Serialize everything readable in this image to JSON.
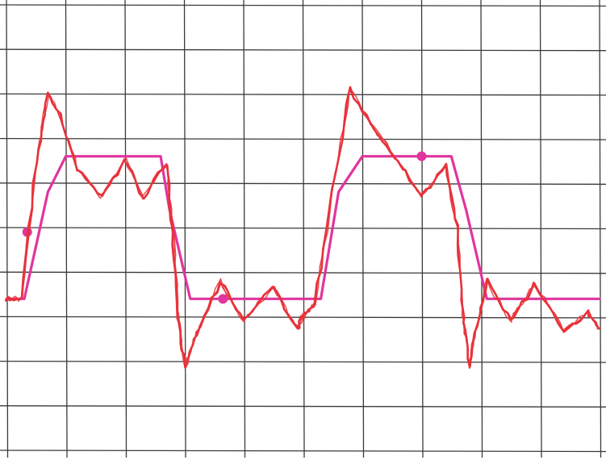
{
  "colors": {
    "background": "#ffffff",
    "grid": "#3a3a3a",
    "response_trace": "#e8323a",
    "reference_trace": "#e0359e"
  },
  "chart_data": {
    "type": "line",
    "title": "",
    "xlabel": "",
    "ylabel": "",
    "x_divisions": 10,
    "y_divisions": 10,
    "xlim": [
      0,
      10
    ],
    "ylim": [
      -5,
      5
    ],
    "grid": true,
    "legend": "none",
    "series": [
      {
        "color": "#e0359e",
        "style": "smooth square wave with markers",
        "x": [
          0.0,
          0.3,
          0.7,
          1.0,
          2.0,
          2.6,
          2.75,
          3.1,
          3.3,
          4.0,
          5.0,
          5.3,
          5.6,
          6.0,
          7.0,
          7.5,
          7.75,
          8.1,
          8.3,
          9.0,
          10.0
        ],
        "y": [
          -1.6,
          -1.6,
          0.8,
          1.6,
          1.6,
          1.6,
          0.4,
          -1.6,
          -1.6,
          -1.6,
          -1.6,
          -1.6,
          0.8,
          1.6,
          1.6,
          1.6,
          0.4,
          -1.6,
          -1.6,
          -1.6,
          -1.6
        ],
        "markers": [
          {
            "x": 0.35,
            "y": -0.1
          },
          {
            "x": 3.65,
            "y": -1.6
          },
          {
            "x": 7.0,
            "y": 1.6
          }
        ]
      },
      {
        "color": "#e8323a",
        "style": "noisy response with overshoot and ringing",
        "x": [
          0.0,
          0.25,
          0.5,
          0.7,
          0.9,
          1.2,
          1.6,
          2.0,
          2.3,
          2.7,
          2.8,
          2.9,
          3.0,
          3.2,
          3.6,
          4.0,
          4.5,
          4.9,
          5.0,
          5.2,
          5.5,
          5.8,
          6.2,
          6.6,
          7.0,
          7.4,
          7.6,
          7.7,
          7.8,
          7.9,
          8.1,
          8.5,
          8.9,
          9.4,
          9.8,
          10.0
        ],
        "y": [
          -1.6,
          -1.6,
          1.5,
          3.0,
          2.5,
          1.3,
          0.7,
          1.5,
          0.7,
          1.4,
          0.0,
          -2.0,
          -3.1,
          -2.4,
          -1.2,
          -2.1,
          -1.3,
          -2.3,
          -2.0,
          -1.7,
          0.8,
          3.1,
          2.2,
          1.5,
          0.7,
          1.4,
          0.0,
          -2.0,
          -3.1,
          -2.4,
          -1.2,
          -2.1,
          -1.3,
          -2.3,
          -1.9,
          -2.3
        ]
      }
    ]
  }
}
